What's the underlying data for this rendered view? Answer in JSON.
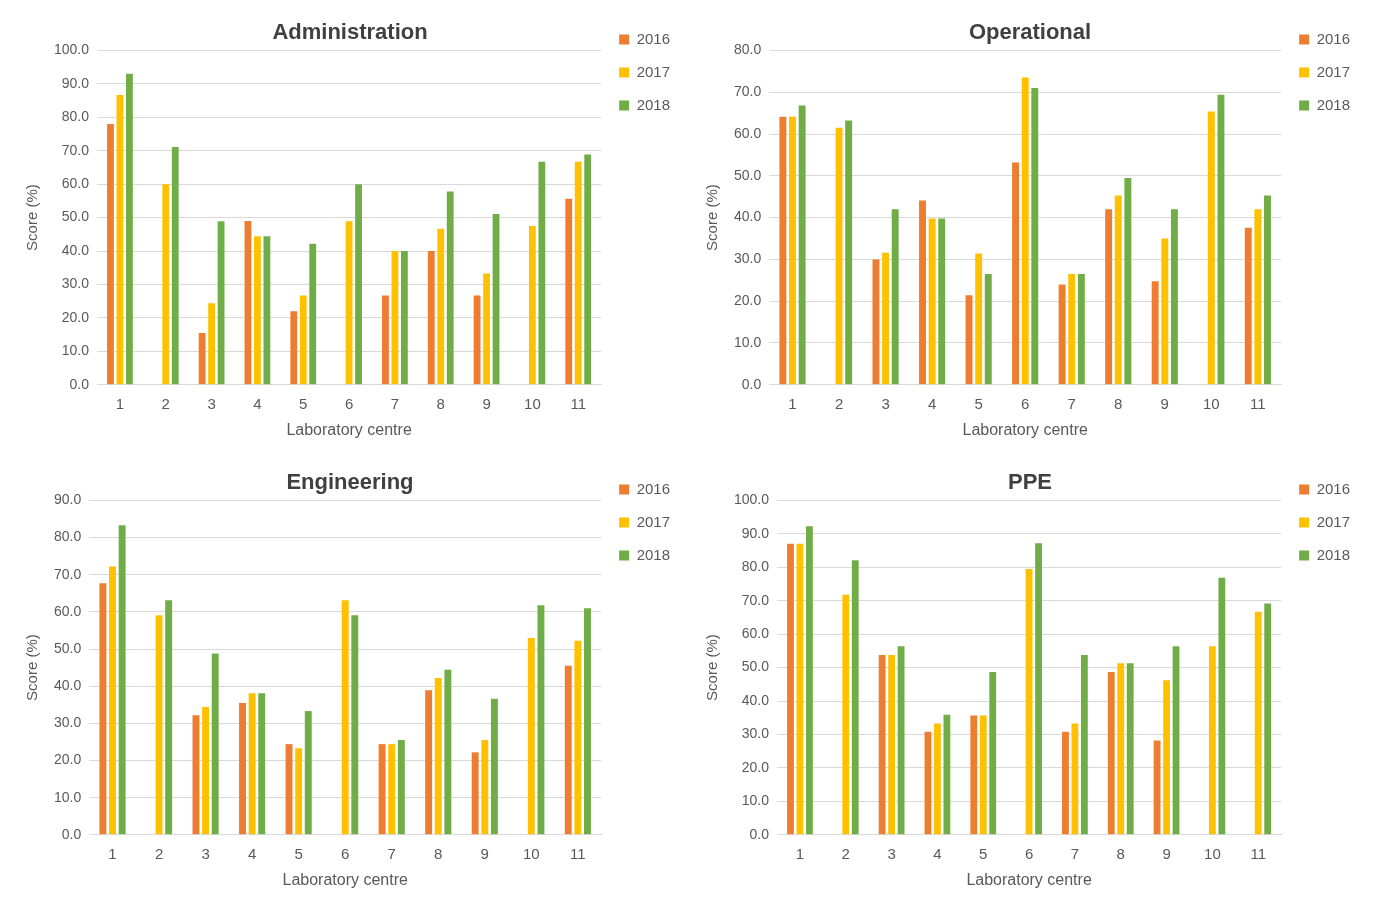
{
  "chart_data": [
    {
      "type": "bar",
      "title": "Administration",
      "xlabel": "Laboratory centre",
      "ylabel": "Score (%)",
      "categories": [
        "1",
        "2",
        "3",
        "4",
        "5",
        "6",
        "7",
        "8",
        "9",
        "10",
        "11"
      ],
      "ylim": [
        0,
        100
      ],
      "yticks": [
        {
          "value": 0,
          "label": "0.0"
        },
        {
          "value": 10,
          "label": "10.0"
        },
        {
          "value": 20,
          "label": "20.0"
        },
        {
          "value": 30,
          "label": "30.0"
        },
        {
          "value": 40,
          "label": "40.0"
        },
        {
          "value": 50,
          "label": "50.0"
        },
        {
          "value": 60,
          "label": "60.0"
        },
        {
          "value": 70,
          "label": "70.0"
        },
        {
          "value": 80,
          "label": "80.0"
        },
        {
          "value": 90,
          "label": "90.0"
        },
        {
          "value": 100,
          "label": "100.0"
        }
      ],
      "grid": "y",
      "legend": "top right",
      "series": [
        {
          "name": "2016",
          "color": "#ed7d31",
          "values": [
            78,
            null,
            15.5,
            49,
            22,
            null,
            26.7,
            40,
            26.7,
            null,
            55.6
          ]
        },
        {
          "name": "2017",
          "color": "#ffc000",
          "values": [
            86.7,
            60,
            24.4,
            44.4,
            26.7,
            48.9,
            40,
            46.7,
            33.3,
            47.5,
            66.7
          ]
        },
        {
          "name": "2018",
          "color": "#70ad47",
          "values": [
            93,
            71.1,
            48.9,
            44.4,
            42.2,
            60,
            40,
            57.8,
            51.1,
            66.7,
            68.9
          ]
        }
      ]
    },
    {
      "type": "bar",
      "title": "Operational",
      "xlabel": "Laboratory centre",
      "ylabel": "Score (%)",
      "categories": [
        "1",
        "2",
        "3",
        "4",
        "5",
        "6",
        "7",
        "8",
        "9",
        "10",
        "11"
      ],
      "ylim": [
        0,
        80
      ],
      "yticks": [
        {
          "value": 0,
          "label": "0.0"
        },
        {
          "value": 10,
          "label": "10.0"
        },
        {
          "value": 20,
          "label": "20.0"
        },
        {
          "value": 30,
          "label": "30.0"
        },
        {
          "value": 40,
          "label": "40.0"
        },
        {
          "value": 50,
          "label": "50.0"
        },
        {
          "value": 60,
          "label": "60.0"
        },
        {
          "value": 70,
          "label": "70.0"
        },
        {
          "value": 80,
          "label": "80.0"
        }
      ],
      "grid": "y",
      "legend": "top right",
      "series": [
        {
          "name": "2016",
          "color": "#ed7d31",
          "values": [
            64.1,
            null,
            30,
            44.1,
            21.4,
            53.2,
            24,
            42,
            24.8,
            null,
            37.6
          ]
        },
        {
          "name": "2017",
          "color": "#ffc000",
          "values": [
            64.1,
            61.5,
            31.6,
            39.8,
            31.4,
            73.5,
            26.5,
            45.3,
            35,
            65.4,
            42
          ]
        },
        {
          "name": "2018",
          "color": "#70ad47",
          "values": [
            66.8,
            63.2,
            42,
            39.8,
            26.5,
            71,
            26.5,
            49.5,
            42,
            69.4,
            45.3
          ]
        }
      ]
    },
    {
      "type": "bar",
      "title": "Engineering",
      "xlabel": "Laboratory centre",
      "ylabel": "Score (%)",
      "categories": [
        "1",
        "2",
        "3",
        "4",
        "5",
        "6",
        "7",
        "8",
        "9",
        "10",
        "11"
      ],
      "ylim": [
        0,
        90
      ],
      "yticks": [
        {
          "value": 0,
          "label": "0.0"
        },
        {
          "value": 10,
          "label": "10.0"
        },
        {
          "value": 20,
          "label": "20.0"
        },
        {
          "value": 30,
          "label": "30.0"
        },
        {
          "value": 40,
          "label": "40.0"
        },
        {
          "value": 50,
          "label": "50.0"
        },
        {
          "value": 60,
          "label": "60.0"
        },
        {
          "value": 70,
          "label": "70.0"
        },
        {
          "value": 80,
          "label": "80.0"
        },
        {
          "value": 90,
          "label": "90.0"
        }
      ],
      "grid": "y",
      "legend": "top right",
      "series": [
        {
          "name": "2016",
          "color": "#ed7d31",
          "values": [
            67.7,
            null,
            32.2,
            35.5,
            24.4,
            null,
            24.4,
            38.9,
            22.2,
            null,
            45.5
          ]
        },
        {
          "name": "2017",
          "color": "#ffc000",
          "values": [
            72.2,
            59.1,
            34.4,
            38.1,
            23.3,
            63.1,
            24.4,
            42.2,
            25.5,
            53,
            52.2
          ]
        },
        {
          "name": "2018",
          "color": "#70ad47",
          "values": [
            83.3,
            63.1,
            48.8,
            38.1,
            33.3,
            59.1,
            25.5,
            44.4,
            36.6,
            61.8,
            61
          ]
        }
      ]
    },
    {
      "type": "bar",
      "title": "PPE",
      "xlabel": "Laboratory centre",
      "ylabel": "Score (%)",
      "categories": [
        "1",
        "2",
        "3",
        "4",
        "5",
        "6",
        "7",
        "8",
        "9",
        "10",
        "11"
      ],
      "ylim": [
        0,
        100
      ],
      "yticks": [
        {
          "value": 0,
          "label": "0.0"
        },
        {
          "value": 10,
          "label": "10.0"
        },
        {
          "value": 20,
          "label": "20.0"
        },
        {
          "value": 30,
          "label": "30.0"
        },
        {
          "value": 40,
          "label": "40.0"
        },
        {
          "value": 50,
          "label": "50.0"
        },
        {
          "value": 60,
          "label": "60.0"
        },
        {
          "value": 70,
          "label": "70.0"
        },
        {
          "value": 80,
          "label": "80.0"
        },
        {
          "value": 90,
          "label": "90.0"
        },
        {
          "value": 100,
          "label": "100.0"
        }
      ],
      "grid": "y",
      "legend": "top right",
      "series": [
        {
          "name": "2016",
          "color": "#ed7d31",
          "values": [
            87,
            null,
            53.8,
            30.8,
            35.7,
            null,
            30.8,
            48.7,
            28.2,
            null,
            null
          ]
        },
        {
          "name": "2017",
          "color": "#ffc000",
          "values": [
            87,
            71.8,
            53.8,
            33.3,
            35.7,
            79.5,
            33.3,
            51.3,
            46.2,
            56.4,
            66.7
          ]
        },
        {
          "name": "2018",
          "color": "#70ad47",
          "values": [
            92.3,
            82.1,
            56.4,
            35.9,
            48.7,
            87.2,
            53.8,
            51.3,
            56.4,
            76.9,
            69.2
          ]
        }
      ]
    }
  ]
}
